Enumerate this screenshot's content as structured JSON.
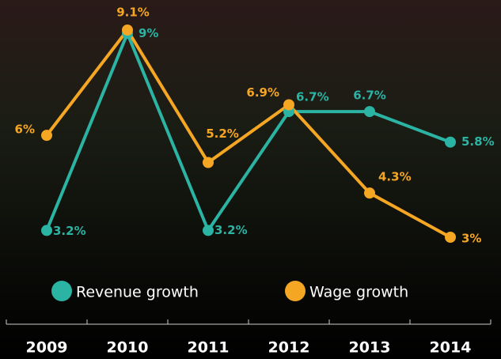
{
  "chart_data": {
    "type": "line",
    "categories": [
      "2009",
      "2010",
      "2011",
      "2012",
      "2013",
      "2014"
    ],
    "series": [
      {
        "name": "Revenue growth",
        "color": "#2bb3a3",
        "values": [
          3.2,
          9,
          3.2,
          6.7,
          6.7,
          5.8
        ],
        "value_labels": [
          "3.2%",
          "9%",
          "3.2%",
          "6.7%",
          "6.7%",
          "5.8%"
        ]
      },
      {
        "name": "Wage growth",
        "color": "#f5a623",
        "values": [
          6,
          9.1,
          5.2,
          6.9,
          4.3,
          3
        ],
        "value_labels": [
          "6%",
          "9.1%",
          "5.2%",
          "6.9%",
          "4.3%",
          "3%"
        ]
      }
    ]
  }
}
